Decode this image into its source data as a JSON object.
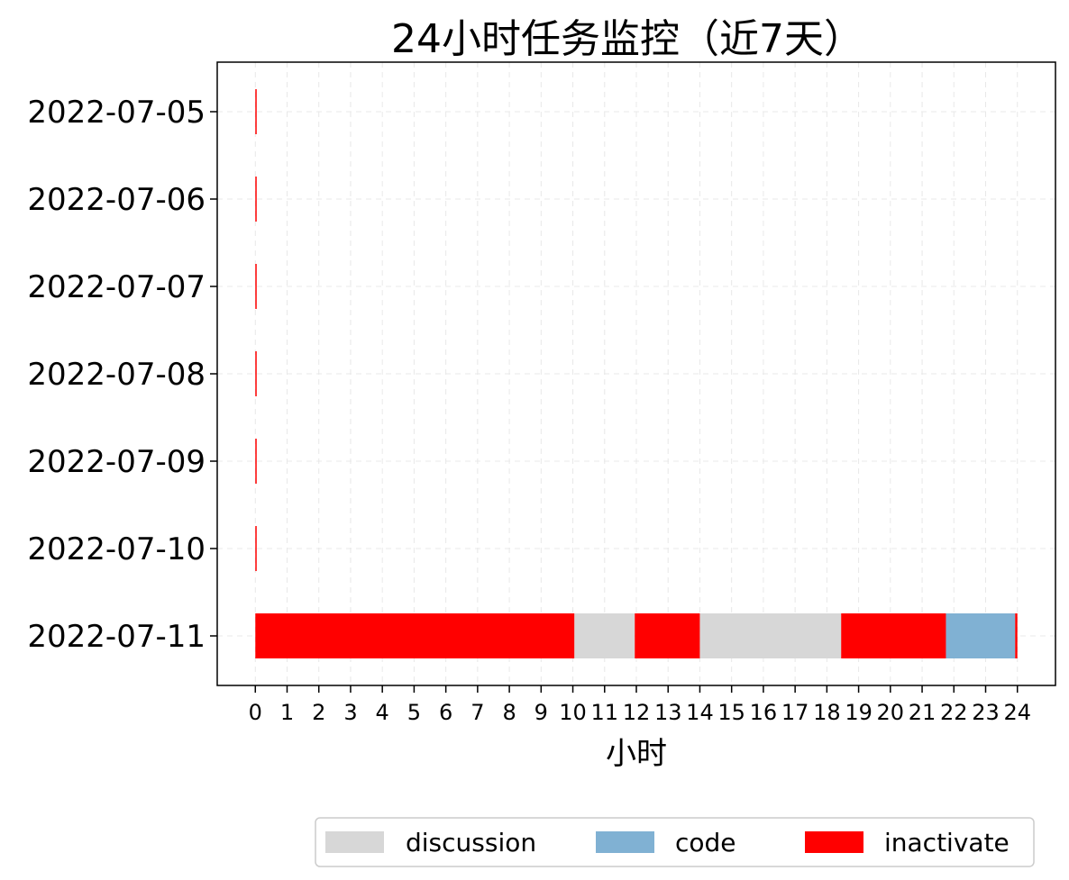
{
  "chart_data": {
    "type": "bar",
    "orientation": "horizontal-stacked-timeline",
    "title": "24小时任务监控（近7天）",
    "xlabel": "小时",
    "ylabel": "",
    "xlim": [
      -1.2,
      25.2
    ],
    "xticks": [
      0,
      1,
      2,
      3,
      4,
      5,
      6,
      7,
      8,
      9,
      10,
      11,
      12,
      13,
      14,
      15,
      16,
      17,
      18,
      19,
      20,
      21,
      22,
      23,
      24
    ],
    "grid": true,
    "legend_position": "bottom-right",
    "colors": {
      "discussion": "#d7d7d7",
      "code": "#80b1d3",
      "inactivate": "#ff0000"
    },
    "legend": [
      {
        "key": "discussion",
        "label": "discussion"
      },
      {
        "key": "code",
        "label": "code"
      },
      {
        "key": "inactivate",
        "label": "inactivate"
      }
    ],
    "categories": [
      "2022-07-05",
      "2022-07-06",
      "2022-07-07",
      "2022-07-08",
      "2022-07-09",
      "2022-07-10",
      "2022-07-11"
    ],
    "segments": [
      [
        {
          "status": "inactivate",
          "start": 0,
          "end": 0.04
        }
      ],
      [
        {
          "status": "inactivate",
          "start": 0,
          "end": 0.04
        }
      ],
      [
        {
          "status": "inactivate",
          "start": 0,
          "end": 0.04
        }
      ],
      [
        {
          "status": "inactivate",
          "start": 0,
          "end": 0.04
        }
      ],
      [
        {
          "status": "inactivate",
          "start": 0,
          "end": 0.04
        }
      ],
      [
        {
          "status": "inactivate",
          "start": 0,
          "end": 0.04
        }
      ],
      [
        {
          "status": "inactivate",
          "start": 0,
          "end": 10.05
        },
        {
          "status": "discussion",
          "start": 10.05,
          "end": 11.95
        },
        {
          "status": "inactivate",
          "start": 11.95,
          "end": 14.0
        },
        {
          "status": "discussion",
          "start": 14.0,
          "end": 18.45
        },
        {
          "status": "inactivate",
          "start": 18.45,
          "end": 21.75
        },
        {
          "status": "code",
          "start": 21.75,
          "end": 23.93
        },
        {
          "status": "inactivate",
          "start": 23.93,
          "end": 24.0
        }
      ]
    ]
  }
}
